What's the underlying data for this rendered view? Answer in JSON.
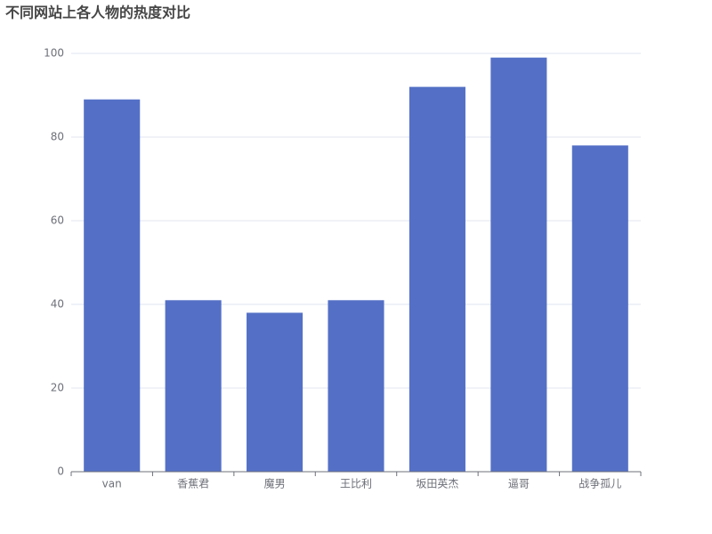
{
  "chart_data": {
    "type": "bar",
    "title": "不同网站上各人物的热度对比",
    "categories": [
      "van",
      "香蕉君",
      "魔男",
      "王比利",
      "坂田英杰",
      "逼哥",
      "战争孤儿"
    ],
    "values": [
      89,
      41,
      38,
      41,
      92,
      99,
      78
    ],
    "color": "#5470c6",
    "ylim": [
      0,
      100
    ],
    "yticks": [
      0,
      20,
      40,
      60,
      80,
      100
    ],
    "grid": true
  }
}
